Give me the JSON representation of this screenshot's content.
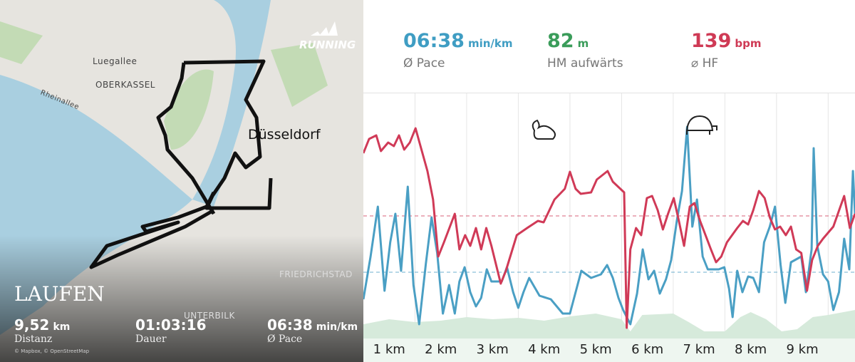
{
  "map": {
    "brand": "RUNNING",
    "labels": [
      "Luegallee",
      "OBERKASSEL",
      "Rheinallee",
      "Düsseldorf",
      "FRIEDRICHSTAD",
      "UNTERBILK"
    ],
    "activity": "LAUFEN",
    "stats": [
      {
        "value": "9,52",
        "unit": "km",
        "label": "Distanz"
      },
      {
        "value": "01:03:16",
        "label": "Dauer"
      },
      {
        "value": "06:38",
        "unit": "min/km",
        "label": "Ø Pace"
      }
    ],
    "attribution": "© Mapbox, © OpenStreetMap"
  },
  "summary": [
    {
      "value": "06:38",
      "unit": "min/km",
      "label": "Ø Pace",
      "color": "#3f9dc3"
    },
    {
      "value": "82",
      "unit": "m",
      "label": "HM aufwärts",
      "color": "#3a9c5a"
    },
    {
      "value": "139",
      "unit": "bpm",
      "label": "⌀ HF",
      "color": "#cf3a55"
    }
  ],
  "chart_data": {
    "type": "line",
    "categories": [
      "1 km",
      "2 km",
      "3 km",
      "4 km",
      "5 km",
      "6 km",
      "7 km",
      "8 km",
      "9 km"
    ],
    "xlim": [
      0,
      9.52
    ],
    "ylim": [
      -5,
      300
    ],
    "xticks": [
      1,
      2,
      3,
      4,
      5,
      6,
      7,
      8,
      9
    ],
    "area": {
      "color": "#d6eadb",
      "x": [
        0,
        0.5,
        1.0,
        1.5,
        2.0,
        2.5,
        3.0,
        3.5,
        4.0,
        4.5,
        5.0,
        5.17,
        5.4,
        6.0,
        6.3,
        6.6,
        7.0,
        7.3,
        7.5,
        7.8,
        8.1,
        8.4,
        8.7,
        9.0,
        9.52
      ],
      "values": [
        15,
        22,
        18,
        20,
        25,
        22,
        24,
        20,
        26,
        30,
        22,
        5,
        28,
        30,
        18,
        5,
        5,
        25,
        32,
        22,
        5,
        8,
        25,
        28,
        35
      ]
    },
    "series": [
      {
        "color": "#d03a57",
        "average": 167,
        "x": [
          0,
          0.11,
          0.25,
          0.34,
          0.48,
          0.59,
          0.69,
          0.79,
          0.9,
          1.01,
          1.24,
          1.35,
          1.45,
          1.56,
          1.77,
          1.86,
          1.97,
          2.07,
          2.18,
          2.28,
          2.38,
          2.48,
          2.66,
          2.76,
          2.97,
          3.17,
          3.38,
          3.49,
          3.7,
          3.9,
          4.0,
          4.11,
          4.21,
          4.41,
          4.52,
          4.73,
          4.83,
          5.05,
          5.1,
          5.17,
          5.28,
          5.38,
          5.49,
          5.59,
          5.7,
          5.8,
          5.9,
          6.01,
          6.11,
          6.21,
          6.32,
          6.41,
          6.52,
          6.73,
          6.83,
          6.93,
          7.04,
          7.24,
          7.35,
          7.45,
          7.55,
          7.66,
          7.77,
          7.87,
          7.97,
          8.07,
          8.18,
          8.28,
          8.38,
          8.48,
          8.59,
          8.69,
          8.8,
          8.9,
          9.1,
          9.31,
          9.42,
          9.52
        ],
        "values": [
          255,
          275,
          280,
          258,
          270,
          265,
          280,
          260,
          270,
          290,
          230,
          190,
          110,
          130,
          170,
          120,
          140,
          125,
          150,
          120,
          150,
          125,
          72,
          90,
          140,
          150,
          160,
          158,
          190,
          205,
          229,
          205,
          198,
          200,
          218,
          230,
          215,
          200,
          10,
          120,
          150,
          140,
          192,
          195,
          175,
          148,
          170,
          192,
          160,
          125,
          180,
          185,
          160,
          120,
          102,
          110,
          130,
          150,
          160,
          155,
          175,
          202,
          192,
          165,
          148,
          152,
          140,
          152,
          120,
          115,
          62,
          105,
          125,
          135,
          152,
          195,
          150,
          170
        ]
      },
      {
        "color": "#4a9fc4",
        "average": 88,
        "x": [
          0,
          0.14,
          0.28,
          0.41,
          0.52,
          0.62,
          0.73,
          0.86,
          0.97,
          1.08,
          1.21,
          1.32,
          1.43,
          1.54,
          1.66,
          1.77,
          1.86,
          1.96,
          2.07,
          2.18,
          2.28,
          2.39,
          2.48,
          2.68,
          2.78,
          2.9,
          3.0,
          3.1,
          3.21,
          3.41,
          3.63,
          3.86,
          4.0,
          4.11,
          4.22,
          4.41,
          4.6,
          4.72,
          4.83,
          4.94,
          5.03,
          5.17,
          5.3,
          5.41,
          5.52,
          5.63,
          5.74,
          5.86,
          5.96,
          6.07,
          6.17,
          6.27,
          6.37,
          6.46,
          6.57,
          6.67,
          6.88,
          6.99,
          7.08,
          7.15,
          7.24,
          7.34,
          7.45,
          7.55,
          7.66,
          7.76,
          7.87,
          7.97,
          8.08,
          8.17,
          8.28,
          8.48,
          8.57,
          8.68,
          8.72,
          8.79,
          8.9,
          9.0,
          9.1,
          9.21,
          9.31,
          9.41,
          9.48,
          9.52
        ],
        "values": [
          50,
          110,
          180,
          62,
          130,
          170,
          90,
          208,
          70,
          15,
          100,
          165,
          115,
          30,
          70,
          30,
          75,
          95,
          60,
          40,
          52,
          92,
          75,
          75,
          95,
          60,
          38,
          60,
          80,
          55,
          50,
          30,
          30,
          60,
          90,
          80,
          85,
          98,
          80,
          52,
          35,
          15,
          58,
          120,
          78,
          90,
          58,
          78,
          105,
          160,
          202,
          292,
          152,
          190,
          110,
          92,
          92,
          95,
          65,
          25,
          90,
          60,
          82,
          80,
          60,
          130,
          152,
          180,
          98,
          45,
          102,
          110,
          60,
          120,
          262,
          125,
          85,
          75,
          35,
          60,
          135,
          92,
          230,
          170
        ]
      }
    ]
  }
}
